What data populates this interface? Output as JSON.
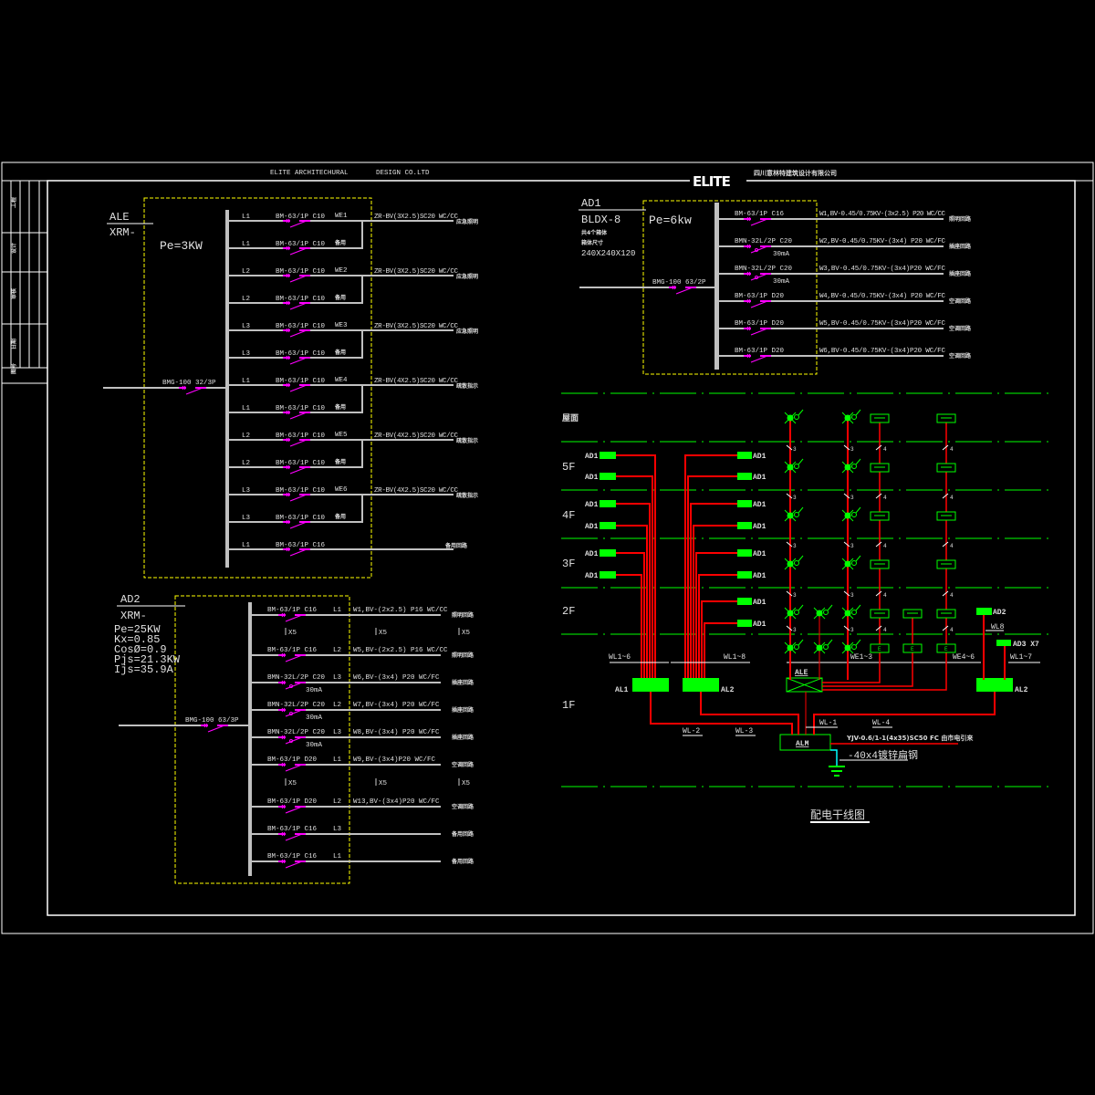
{
  "header": {
    "company_en": "ELITE  ARCHITECHURAL",
    "company_en2": "DESIGN   CO.LTD",
    "logo": "ELITE",
    "company_cn": "四川意林特建筑设计有限公司"
  },
  "title_block": {
    "cells": [
      "工程",
      "设计",
      "审核",
      "日期",
      "图号"
    ]
  },
  "ale": {
    "name": "ALE",
    "model": "XRM-",
    "power": "Pe=3KW",
    "main_breaker": "BMG-100 32/3P",
    "rows": [
      {
        "phase": "L1",
        "breaker": "BM-63/1P C10",
        "circuit": "WE1",
        "cable": "ZR-BV(3X2.5)SC20 WC/CC",
        "dest": "应急照明"
      },
      {
        "phase": "L1",
        "breaker": "BM-63/1P C10",
        "circuit": "备用"
      },
      {
        "phase": "L2",
        "breaker": "BM-63/1P C10",
        "circuit": "WE2",
        "cable": "ZR-BV(3X2.5)SC20 WC/CC",
        "dest": "应急照明"
      },
      {
        "phase": "L2",
        "breaker": "BM-63/1P C10",
        "circuit": "备用"
      },
      {
        "phase": "L3",
        "breaker": "BM-63/1P C10",
        "circuit": "WE3",
        "cable": "ZR-BV(3X2.5)SC20 WC/CC",
        "dest": "应急照明"
      },
      {
        "phase": "L3",
        "breaker": "BM-63/1P C10",
        "circuit": "备用"
      },
      {
        "phase": "L1",
        "breaker": "BM-63/1P C10",
        "circuit": "WE4",
        "cable": "ZR-BV(4X2.5)SC20 WC/CC",
        "dest": "疏散指示"
      },
      {
        "phase": "L1",
        "breaker": "BM-63/1P C10",
        "circuit": "备用"
      },
      {
        "phase": "L2",
        "breaker": "BM-63/1P C10",
        "circuit": "WE5",
        "cable": "ZR-BV(4X2.5)SC20 WC/CC",
        "dest": "疏散指示"
      },
      {
        "phase": "L2",
        "breaker": "BM-63/1P C10",
        "circuit": "备用"
      },
      {
        "phase": "L3",
        "breaker": "BM-63/1P C10",
        "circuit": "WE6",
        "cable": "ZR-BV(4X2.5)SC20 WC/CC",
        "dest": "疏散指示"
      },
      {
        "phase": "L3",
        "breaker": "BM-63/1P C10",
        "circuit": "备用"
      },
      {
        "phase": "L1",
        "breaker": "BM-63/1P C16",
        "dest": "备用回路"
      }
    ]
  },
  "ad1": {
    "name": "AD1",
    "model": "BLDX-8",
    "note1": "共4个箱体",
    "note2": "箱体尺寸",
    "size": "240X240X120",
    "power": "Pe=6kw",
    "main_breaker": "BMG-100 63/2P",
    "rows": [
      {
        "breaker": "BM-63/1P C16",
        "cable": "W1,BV-0.45/0.75KV-(3x2.5) P20 WC/CC",
        "dest": "照明回路"
      },
      {
        "breaker": "BMN-32L/2P C20",
        "rcd": "30mA",
        "cable": "W2,BV-0.45/0.75KV-(3x4) P20 WC/FC",
        "dest": "插座回路"
      },
      {
        "breaker": "BMN-32L/2P C20",
        "rcd": "30mA",
        "cable": "W3,BV-0.45/0.75KV-(3x4)P20 WC/FC",
        "dest": "插座回路"
      },
      {
        "breaker": "BM-63/1P D20",
        "cable": "W4,BV-0.45/0.75KV-(3x4) P20 WC/FC",
        "dest": "空调回路"
      },
      {
        "breaker": "BM-63/1P D20",
        "cable": "W5,BV-0.45/0.75KV-(3x4)P20 WC/FC",
        "dest": "空调回路"
      },
      {
        "breaker": "BM-63/1P D20",
        "cable": "W6,BV-0.45/0.75KV-(3x4)P20 WC/FC",
        "dest": "空调回路"
      }
    ]
  },
  "ad2": {
    "name": "AD2",
    "model": "XRM-",
    "params": [
      "Pe=25KW",
      "Kx=0.85",
      "CosØ=0.9",
      "Pjs=21.3KW",
      "Ijs=35.9A"
    ],
    "main_breaker": "BMG-100 63/3P",
    "repeat": "X5",
    "rows": [
      {
        "breaker": "BM-63/1P C16",
        "phase": "L1",
        "cable": "W1,BV-(2x2.5) P16 WC/CC",
        "dest": "照明回路"
      },
      {
        "repeat": true
      },
      {
        "breaker": "BM-63/1P C16",
        "phase": "L2",
        "cable": "W5,BV-(2x2.5) P16 WC/CC",
        "dest": "照明回路"
      },
      {
        "breaker": "BMN-32L/2P C20",
        "phase": "L3",
        "rcd": "30mA",
        "cable": "W6,BV-(3x4) P20 WC/FC",
        "dest": "插座回路"
      },
      {
        "breaker": "BMN-32L/2P C20",
        "phase": "L2",
        "rcd": "30mA",
        "cable": "W7,BV-(3x4) P20 WC/FC",
        "dest": "插座回路"
      },
      {
        "breaker": "BMN-32L/2P C20",
        "phase": "L3",
        "rcd": "30mA",
        "cable": "W8,BV-(3x4) P20 WC/FC",
        "dest": "插座回路"
      },
      {
        "breaker": "BM-63/1P D20",
        "phase": "L1",
        "cable": "W9,BV-(3x4)P20 WC/FC",
        "dest": "空调回路"
      },
      {
        "repeat": true
      },
      {
        "breaker": "BM-63/1P D20",
        "phase": "L2",
        "cable": "W13,BV-(3x4)P20 WC/FC",
        "dest": "空调回路"
      },
      {
        "breaker": "BM-63/1P C16",
        "phase": "L3",
        "dest": "备用回路"
      },
      {
        "breaker": "BM-63/1P C16",
        "phase": "L1",
        "dest": "备用回路"
      }
    ]
  },
  "riser": {
    "title": "配电干线图",
    "floors": [
      "屋面",
      "5F",
      "4F",
      "3F",
      "2F",
      "1F"
    ],
    "box_label": "AD1",
    "panels": {
      "al1": "AL1",
      "al2": "AL2",
      "ale": "ALE",
      "alm": "ALM",
      "al2_right": "AL2",
      "ad2": "AD2",
      "ad3": "AD3  X7"
    },
    "feeders": {
      "wl1_6": "WL1~6",
      "wl1_8": "WL1~8",
      "we1_3": "WE1~3",
      "we4_6": "WE4~6",
      "wl1_7": "WL1~7",
      "wl8": "WL8",
      "wl_1": "WL-1",
      "wl_2": "WL-2",
      "wl_3": "WL-3",
      "wl_4": "WL-4"
    },
    "wire_counts": {
      "light": "3",
      "sign": "4"
    },
    "incoming": "YJV-0.6/1-1(4x35)SC50 FC   由市电引来",
    "earthing": "-40x4镀锌扁钢",
    "exit_letter": "E"
  },
  "colors": {
    "background": "#000000",
    "frame": "#ffffff",
    "wire": "#c0c0c0",
    "breaker": "#ff00ff",
    "panel_border": "#ffff00",
    "riser_wire": "#ff0000",
    "equipment": "#00ff00",
    "earth": "#00ffff"
  }
}
